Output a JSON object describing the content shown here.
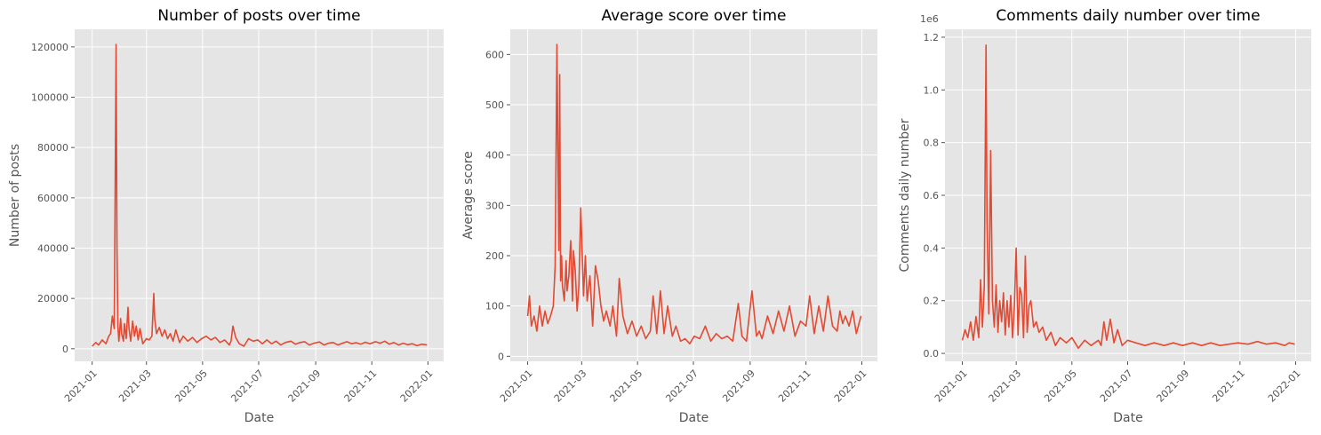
{
  "colors": {
    "background": "#E5E5E5",
    "grid": "#FFFFFF",
    "line": "#E24A33",
    "text": "#555555"
  },
  "chart_data": [
    {
      "type": "line",
      "title": "Number of posts over time",
      "xlabel": "Date",
      "ylabel": "Number of posts",
      "y_offset_label": "",
      "xlim": [
        "2020-12-13",
        "2022-01-18"
      ],
      "ylim": [
        -5000,
        127000
      ],
      "yticks": [
        0,
        20000,
        40000,
        60000,
        80000,
        100000,
        120000
      ],
      "ytick_labels": [
        "0",
        "20000",
        "40000",
        "60000",
        "80000",
        "100000",
        "120000"
      ],
      "xticks": [
        "2021-01-01",
        "2021-03-01",
        "2021-05-01",
        "2021-07-01",
        "2021-09-01",
        "2021-11-01",
        "2022-01-01"
      ],
      "xtick_labels": [
        "2021-01",
        "2021-03",
        "2021-05",
        "2021-07",
        "2021-09",
        "2021-11",
        "2022-01"
      ],
      "grid": true,
      "series": [
        {
          "x": [
            "2021-01-01",
            "2021-01-05",
            "2021-01-08",
            "2021-01-12",
            "2021-01-16",
            "2021-01-19",
            "2021-01-21",
            "2021-01-23",
            "2021-01-25",
            "2021-01-26",
            "2021-01-27",
            "2021-01-28",
            "2021-01-29",
            "2021-01-30",
            "2021-02-01",
            "2021-02-02",
            "2021-02-04",
            "2021-02-05",
            "2021-02-07",
            "2021-02-09",
            "2021-02-10",
            "2021-02-12",
            "2021-02-14",
            "2021-02-16",
            "2021-02-18",
            "2021-02-20",
            "2021-02-22",
            "2021-02-25",
            "2021-03-01",
            "2021-03-04",
            "2021-03-07",
            "2021-03-09",
            "2021-03-10",
            "2021-03-12",
            "2021-03-15",
            "2021-03-18",
            "2021-03-21",
            "2021-03-24",
            "2021-03-27",
            "2021-03-30",
            "2021-04-02",
            "2021-04-06",
            "2021-04-10",
            "2021-04-15",
            "2021-04-20",
            "2021-04-25",
            "2021-04-30",
            "2021-05-05",
            "2021-05-10",
            "2021-05-15",
            "2021-05-20",
            "2021-05-25",
            "2021-05-30",
            "2021-06-01",
            "2021-06-03",
            "2021-06-06",
            "2021-06-10",
            "2021-06-15",
            "2021-06-20",
            "2021-06-25",
            "2021-06-30",
            "2021-07-05",
            "2021-07-10",
            "2021-07-15",
            "2021-07-20",
            "2021-07-25",
            "2021-07-30",
            "2021-08-05",
            "2021-08-10",
            "2021-08-15",
            "2021-08-20",
            "2021-08-25",
            "2021-08-30",
            "2021-09-05",
            "2021-09-10",
            "2021-09-15",
            "2021-09-20",
            "2021-09-25",
            "2021-09-30",
            "2021-10-05",
            "2021-10-10",
            "2021-10-15",
            "2021-10-20",
            "2021-10-25",
            "2021-10-30",
            "2021-11-05",
            "2021-11-10",
            "2021-11-15",
            "2021-11-20",
            "2021-11-25",
            "2021-11-30",
            "2021-12-05",
            "2021-12-10",
            "2021-12-15",
            "2021-12-20",
            "2021-12-25",
            "2021-12-31"
          ],
          "y": [
            1000,
            2500,
            1500,
            3500,
            2000,
            5000,
            6000,
            13000,
            8000,
            60000,
            121000,
            40000,
            9000,
            3000,
            12000,
            6000,
            3000,
            10000,
            4000,
            16500,
            8000,
            3000,
            11000,
            5000,
            9000,
            3500,
            8000,
            2000,
            4000,
            3500,
            5000,
            22000,
            12000,
            6000,
            8500,
            5000,
            7500,
            4000,
            6000,
            3000,
            7500,
            2500,
            5000,
            3000,
            4500,
            2500,
            4000,
            5000,
            3500,
            4500,
            2500,
            3500,
            1500,
            3000,
            9000,
            4500,
            2000,
            1000,
            4000,
            3000,
            3500,
            2000,
            3500,
            2000,
            3000,
            1500,
            2500,
            3000,
            1800,
            2500,
            2800,
            1500,
            2200,
            2700,
            1500,
            2200,
            2500,
            1500,
            2200,
            2800,
            2000,
            2400,
            1800,
            2600,
            2000,
            2800,
            2200,
            3000,
            1800,
            2500,
            1500,
            2200,
            1600,
            2000,
            1200,
            1800,
            1500
          ]
        }
      ]
    },
    {
      "type": "line",
      "title": "Average score over time",
      "xlabel": "Date",
      "ylabel": "Average score",
      "y_offset_label": "",
      "xlim": [
        "2020-12-13",
        "2022-01-18"
      ],
      "ylim": [
        -10,
        650
      ],
      "yticks": [
        0,
        100,
        200,
        300,
        400,
        500,
        600
      ],
      "ytick_labels": [
        "0",
        "100",
        "200",
        "300",
        "400",
        "500",
        "600"
      ],
      "xticks": [
        "2021-01-01",
        "2021-03-01",
        "2021-05-01",
        "2021-07-01",
        "2021-09-01",
        "2021-11-01",
        "2022-01-01"
      ],
      "xtick_labels": [
        "2021-01",
        "2021-03",
        "2021-05",
        "2021-07",
        "2021-09",
        "2021-11",
        "2022-01"
      ],
      "grid": true,
      "series": [
        {
          "x": [
            "2021-01-01",
            "2021-01-03",
            "2021-01-05",
            "2021-01-08",
            "2021-01-11",
            "2021-01-14",
            "2021-01-17",
            "2021-01-20",
            "2021-01-23",
            "2021-01-26",
            "2021-01-29",
            "2021-01-31",
            "2021-02-02",
            "2021-02-03",
            "2021-02-04",
            "2021-02-05",
            "2021-02-06",
            "2021-02-07",
            "2021-02-08",
            "2021-02-10",
            "2021-02-12",
            "2021-02-13",
            "2021-02-15",
            "2021-02-17",
            "2021-02-19",
            "2021-02-20",
            "2021-02-22",
            "2021-02-24",
            "2021-02-26",
            "2021-02-28",
            "2021-03-03",
            "2021-03-05",
            "2021-03-07",
            "2021-03-10",
            "2021-03-13",
            "2021-03-16",
            "2021-03-19",
            "2021-03-22",
            "2021-03-25",
            "2021-03-28",
            "2021-04-01",
            "2021-04-04",
            "2021-04-08",
            "2021-04-11",
            "2021-04-15",
            "2021-04-20",
            "2021-04-25",
            "2021-04-30",
            "2021-05-05",
            "2021-05-10",
            "2021-05-15",
            "2021-05-18",
            "2021-05-22",
            "2021-05-26",
            "2021-05-30",
            "2021-06-03",
            "2021-06-08",
            "2021-06-12",
            "2021-06-17",
            "2021-06-22",
            "2021-06-27",
            "2021-07-02",
            "2021-07-08",
            "2021-07-14",
            "2021-07-20",
            "2021-07-26",
            "2021-08-01",
            "2021-08-07",
            "2021-08-13",
            "2021-08-19",
            "2021-08-23",
            "2021-08-28",
            "2021-09-03",
            "2021-09-08",
            "2021-09-11",
            "2021-09-14",
            "2021-09-20",
            "2021-09-26",
            "2021-10-02",
            "2021-10-08",
            "2021-10-14",
            "2021-10-20",
            "2021-10-26",
            "2021-11-01",
            "2021-11-05",
            "2021-11-10",
            "2021-11-15",
            "2021-11-20",
            "2021-11-25",
            "2021-11-30",
            "2021-12-05",
            "2021-12-08",
            "2021-12-11",
            "2021-12-14",
            "2021-12-18",
            "2021-12-22",
            "2021-12-26",
            "2021-12-31"
          ],
          "y": [
            80,
            120,
            60,
            80,
            50,
            100,
            60,
            90,
            65,
            80,
            100,
            180,
            620,
            400,
            210,
            560,
            150,
            200,
            140,
            110,
            190,
            130,
            160,
            230,
            110,
            210,
            170,
            90,
            140,
            295,
            120,
            200,
            110,
            160,
            60,
            180,
            150,
            100,
            70,
            90,
            60,
            100,
            40,
            155,
            80,
            45,
            70,
            40,
            60,
            35,
            50,
            120,
            45,
            130,
            45,
            100,
            40,
            60,
            30,
            35,
            25,
            40,
            35,
            60,
            30,
            45,
            35,
            40,
            30,
            105,
            40,
            30,
            130,
            40,
            50,
            35,
            80,
            45,
            90,
            50,
            100,
            40,
            70,
            60,
            120,
            45,
            100,
            50,
            120,
            60,
            50,
            90,
            65,
            80,
            60,
            90,
            45,
            80
          ]
        }
      ]
    },
    {
      "type": "line",
      "title": "Comments daily number over time",
      "xlabel": "Date",
      "ylabel": "Comments daily number",
      "y_offset_label": "1e6",
      "xlim": [
        "2020-12-13",
        "2022-01-18"
      ],
      "ylim": [
        -0.03,
        1.23
      ],
      "yticks": [
        0.0,
        0.2,
        0.4,
        0.6,
        0.8,
        1.0,
        1.2
      ],
      "ytick_labels": [
        "0.0",
        "0.2",
        "0.4",
        "0.6",
        "0.8",
        "1.0",
        "1.2"
      ],
      "xticks": [
        "2021-01-01",
        "2021-03-01",
        "2021-05-01",
        "2021-07-01",
        "2021-09-01",
        "2021-11-01",
        "2022-01-01"
      ],
      "xtick_labels": [
        "2021-01",
        "2021-03",
        "2021-05",
        "2021-07",
        "2021-09",
        "2021-11",
        "2022-01"
      ],
      "grid": true,
      "series": [
        {
          "x": [
            "2021-01-01",
            "2021-01-04",
            "2021-01-07",
            "2021-01-10",
            "2021-01-13",
            "2021-01-16",
            "2021-01-19",
            "2021-01-21",
            "2021-01-23",
            "2021-01-25",
            "2021-01-27",
            "2021-01-28",
            "2021-01-30",
            "2021-02-01",
            "2021-02-03",
            "2021-02-05",
            "2021-02-07",
            "2021-02-09",
            "2021-02-11",
            "2021-02-13",
            "2021-02-15",
            "2021-02-17",
            "2021-02-19",
            "2021-02-21",
            "2021-02-23",
            "2021-02-25",
            "2021-02-27",
            "2021-03-01",
            "2021-03-03",
            "2021-03-05",
            "2021-03-07",
            "2021-03-09",
            "2021-03-11",
            "2021-03-13",
            "2021-03-15",
            "2021-03-17",
            "2021-03-20",
            "2021-03-23",
            "2021-03-26",
            "2021-03-30",
            "2021-04-03",
            "2021-04-08",
            "2021-04-13",
            "2021-04-18",
            "2021-04-25",
            "2021-05-01",
            "2021-05-08",
            "2021-05-15",
            "2021-05-22",
            "2021-05-30",
            "2021-06-02",
            "2021-06-05",
            "2021-06-08",
            "2021-06-12",
            "2021-06-16",
            "2021-06-20",
            "2021-06-25",
            "2021-07-01",
            "2021-07-10",
            "2021-07-20",
            "2021-07-30",
            "2021-08-10",
            "2021-08-20",
            "2021-08-30",
            "2021-09-10",
            "2021-09-20",
            "2021-09-30",
            "2021-10-10",
            "2021-10-20",
            "2021-10-30",
            "2021-11-10",
            "2021-11-20",
            "2021-11-30",
            "2021-12-10",
            "2021-12-20",
            "2021-12-25",
            "2021-12-31"
          ],
          "y": [
            0.05,
            0.09,
            0.06,
            0.12,
            0.05,
            0.14,
            0.06,
            0.28,
            0.1,
            0.25,
            1.17,
            0.5,
            0.15,
            0.77,
            0.2,
            0.1,
            0.26,
            0.08,
            0.2,
            0.12,
            0.23,
            0.07,
            0.2,
            0.1,
            0.22,
            0.06,
            0.18,
            0.4,
            0.07,
            0.25,
            0.22,
            0.06,
            0.37,
            0.08,
            0.18,
            0.2,
            0.1,
            0.12,
            0.08,
            0.1,
            0.05,
            0.08,
            0.03,
            0.06,
            0.04,
            0.06,
            0.02,
            0.05,
            0.03,
            0.05,
            0.03,
            0.12,
            0.05,
            0.13,
            0.04,
            0.09,
            0.03,
            0.05,
            0.04,
            0.03,
            0.04,
            0.03,
            0.04,
            0.03,
            0.04,
            0.03,
            0.04,
            0.03,
            0.035,
            0.04,
            0.035,
            0.045,
            0.035,
            0.04,
            0.03,
            0.04,
            0.035
          ]
        }
      ]
    }
  ]
}
